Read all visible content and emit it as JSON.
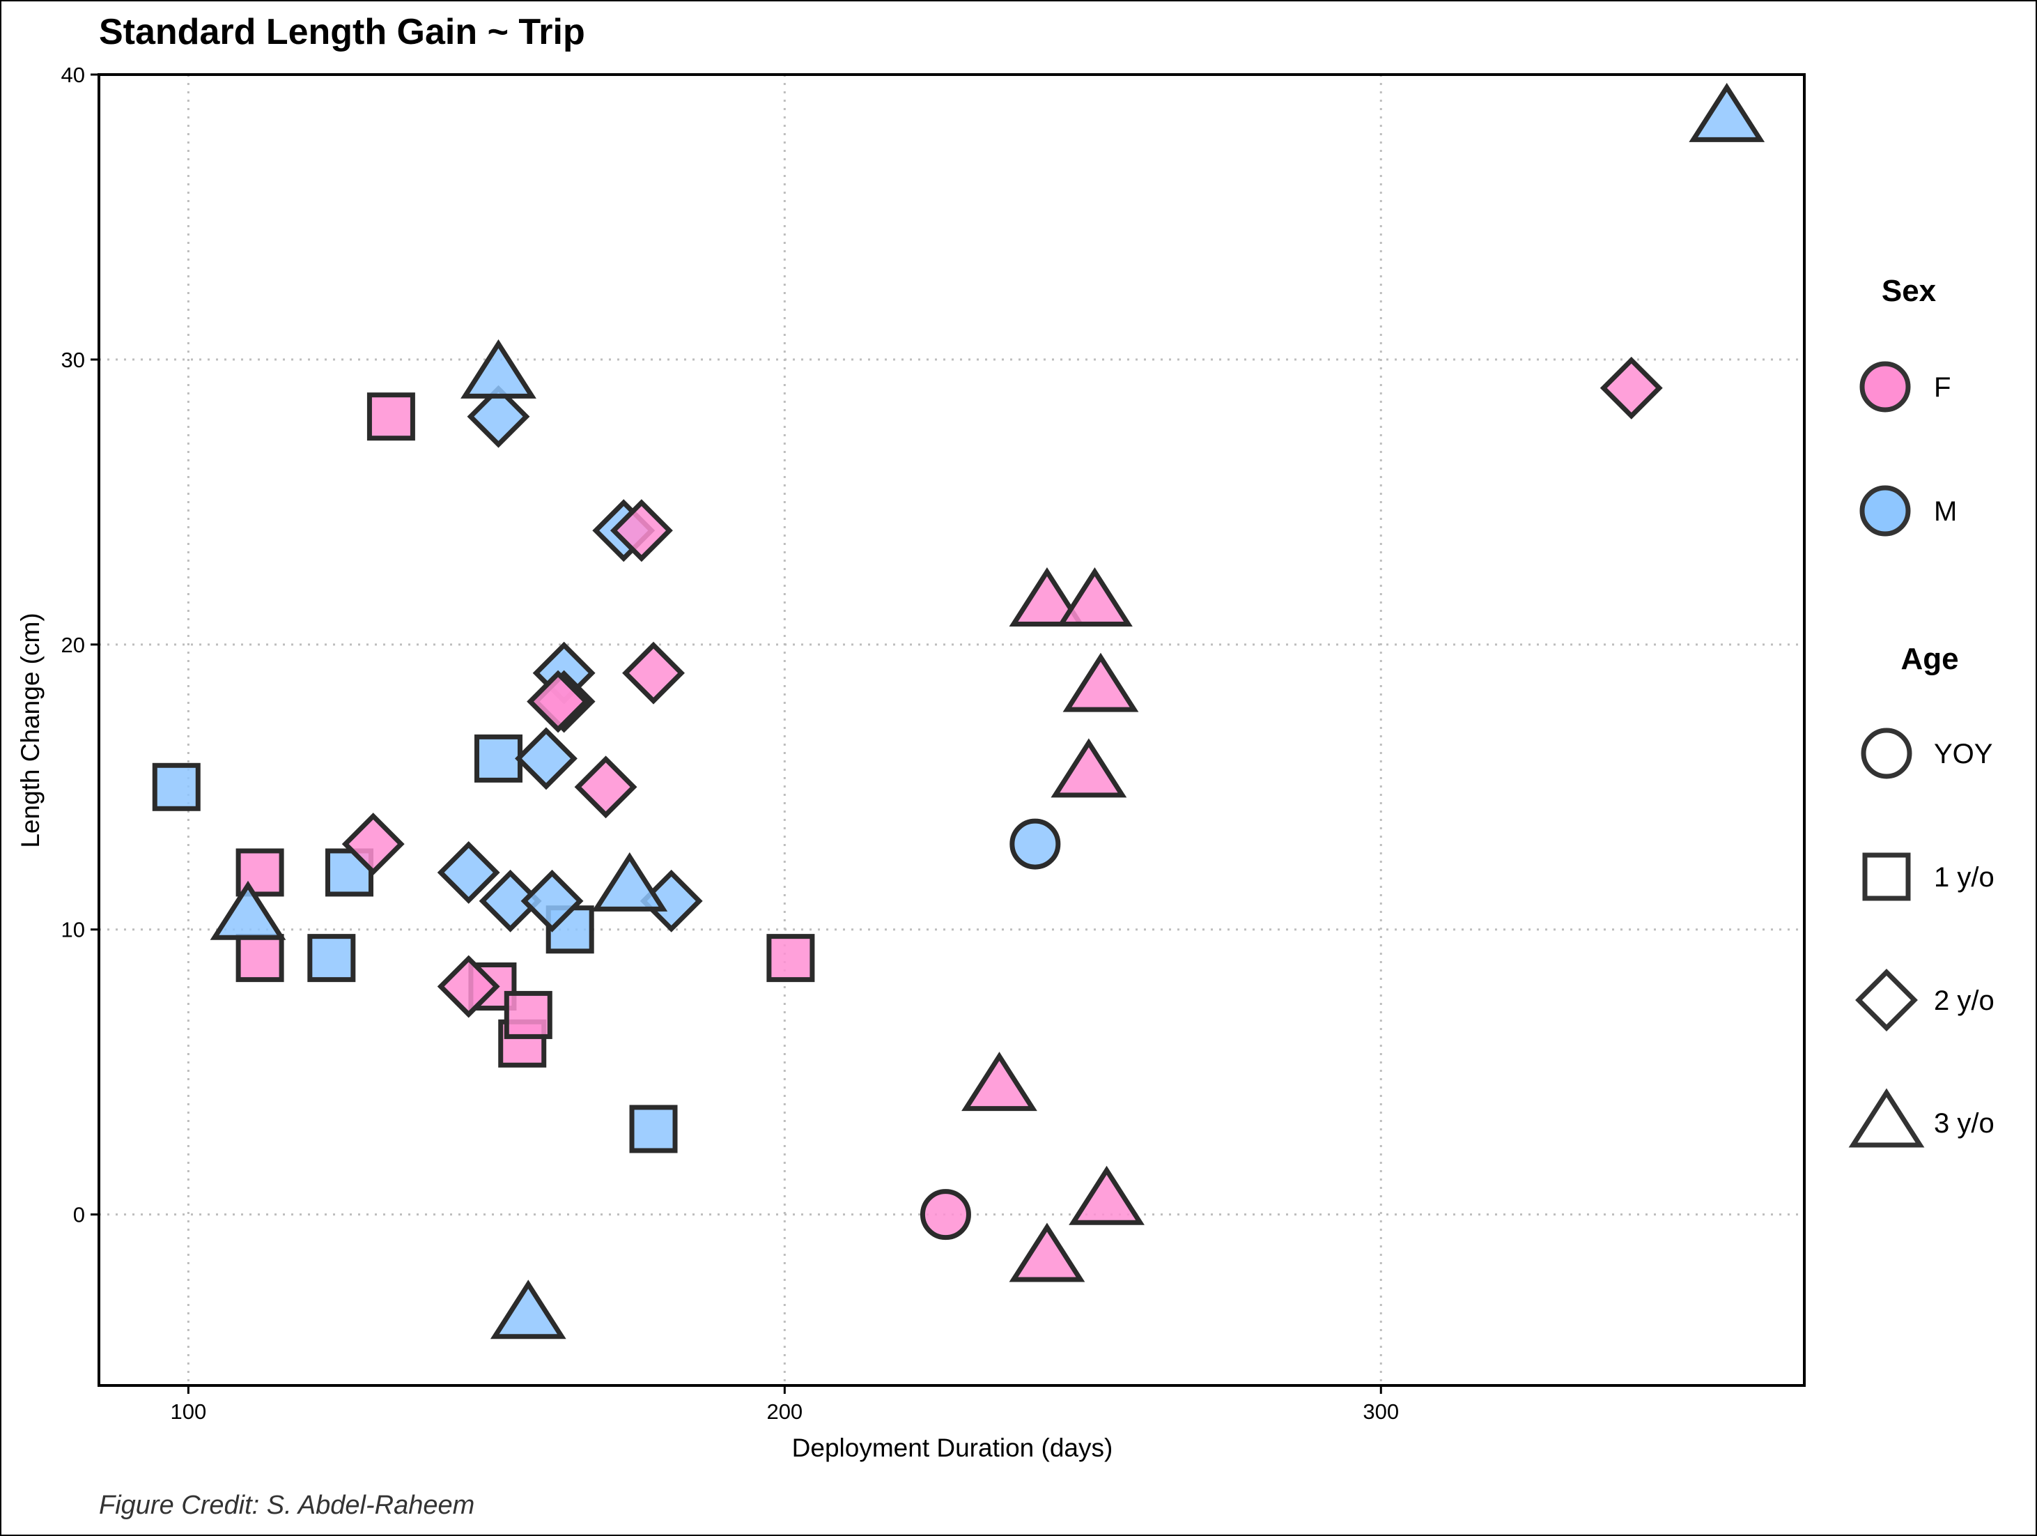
{
  "chart_data": {
    "type": "scatter",
    "title": "Standard Length Gain ~ Trip",
    "xlabel": "Deployment Duration (days)",
    "ylabel": "Length Change (cm)",
    "caption": "Figure Credit: S. Abdel-Raheem",
    "xlim": [
      85,
      371
    ],
    "ylim": [
      -6,
      40
    ],
    "xticks": [
      100,
      200,
      300
    ],
    "yticks": [
      0,
      10,
      20,
      30,
      40
    ],
    "grid": true,
    "legend_position": "right",
    "colors": {
      "F": "#ff8fd3",
      "M": "#8ec6ff",
      "stroke": "#2b2b2b"
    },
    "legend": {
      "sex_title": "Sex",
      "sex_entries": [
        {
          "key": "F",
          "label": "F"
        },
        {
          "key": "M",
          "label": "M"
        }
      ],
      "age_title": "Age",
      "age_entries": [
        {
          "key": "YOY",
          "label": "YOY"
        },
        {
          "key": "1",
          "label": "1 y/o"
        },
        {
          "key": "2",
          "label": "2 y/o"
        },
        {
          "key": "3",
          "label": "3 y/o"
        }
      ]
    },
    "points": [
      {
        "x": 98,
        "y": 15,
        "sex": "M",
        "age": "1"
      },
      {
        "x": 112,
        "y": 12,
        "sex": "F",
        "age": "1"
      },
      {
        "x": 112,
        "y": 9,
        "sex": "F",
        "age": "1"
      },
      {
        "x": 124,
        "y": 9,
        "sex": "M",
        "age": "1"
      },
      {
        "x": 127,
        "y": 12,
        "sex": "M",
        "age": "1"
      },
      {
        "x": 134,
        "y": 28,
        "sex": "F",
        "age": "1"
      },
      {
        "x": 152,
        "y": 16,
        "sex": "M",
        "age": "1"
      },
      {
        "x": 151,
        "y": 8,
        "sex": "F",
        "age": "1"
      },
      {
        "x": 156,
        "y": 6,
        "sex": "F",
        "age": "1"
      },
      {
        "x": 157,
        "y": 7,
        "sex": "F",
        "age": "1"
      },
      {
        "x": 164,
        "y": 10,
        "sex": "M",
        "age": "1"
      },
      {
        "x": 178,
        "y": 3,
        "sex": "M",
        "age": "1"
      },
      {
        "x": 201,
        "y": 9,
        "sex": "F",
        "age": "1"
      },
      {
        "x": 131,
        "y": 13,
        "sex": "F",
        "age": "2"
      },
      {
        "x": 147,
        "y": 12,
        "sex": "M",
        "age": "2"
      },
      {
        "x": 147,
        "y": 8,
        "sex": "F",
        "age": "2"
      },
      {
        "x": 152,
        "y": 28,
        "sex": "M",
        "age": "2"
      },
      {
        "x": 154,
        "y": 11,
        "sex": "M",
        "age": "2"
      },
      {
        "x": 160,
        "y": 16,
        "sex": "M",
        "age": "2"
      },
      {
        "x": 161,
        "y": 11,
        "sex": "M",
        "age": "2"
      },
      {
        "x": 163,
        "y": 19,
        "sex": "M",
        "age": "2"
      },
      {
        "x": 163,
        "y": 18,
        "sex": "F",
        "age": "2"
      },
      {
        "x": 162,
        "y": 18,
        "sex": "F",
        "age": "2"
      },
      {
        "x": 170,
        "y": 15,
        "sex": "F",
        "age": "2"
      },
      {
        "x": 173,
        "y": 24,
        "sex": "M",
        "age": "2"
      },
      {
        "x": 176,
        "y": 24,
        "sex": "F",
        "age": "2"
      },
      {
        "x": 178,
        "y": 19,
        "sex": "F",
        "age": "2"
      },
      {
        "x": 181,
        "y": 11,
        "sex": "M",
        "age": "2"
      },
      {
        "x": 342,
        "y": 29,
        "sex": "F",
        "age": "2"
      },
      {
        "x": 110,
        "y": 10.5,
        "sex": "M",
        "age": "3"
      },
      {
        "x": 152,
        "y": 29.5,
        "sex": "M",
        "age": "3"
      },
      {
        "x": 157,
        "y": -3.5,
        "sex": "M",
        "age": "3"
      },
      {
        "x": 174,
        "y": 11.5,
        "sex": "M",
        "age": "3"
      },
      {
        "x": 236,
        "y": 4.5,
        "sex": "F",
        "age": "3"
      },
      {
        "x": 244,
        "y": 21.5,
        "sex": "F",
        "age": "3"
      },
      {
        "x": 244,
        "y": -1.5,
        "sex": "F",
        "age": "3"
      },
      {
        "x": 252,
        "y": 21.5,
        "sex": "F",
        "age": "3"
      },
      {
        "x": 253,
        "y": 18.5,
        "sex": "F",
        "age": "3"
      },
      {
        "x": 251,
        "y": 15.5,
        "sex": "F",
        "age": "3"
      },
      {
        "x": 254,
        "y": 0.5,
        "sex": "F",
        "age": "3"
      },
      {
        "x": 358,
        "y": 38.5,
        "sex": "M",
        "age": "3"
      },
      {
        "x": 227,
        "y": 0,
        "sex": "F",
        "age": "YOY"
      },
      {
        "x": 242,
        "y": 13,
        "sex": "M",
        "age": "YOY"
      }
    ]
  }
}
